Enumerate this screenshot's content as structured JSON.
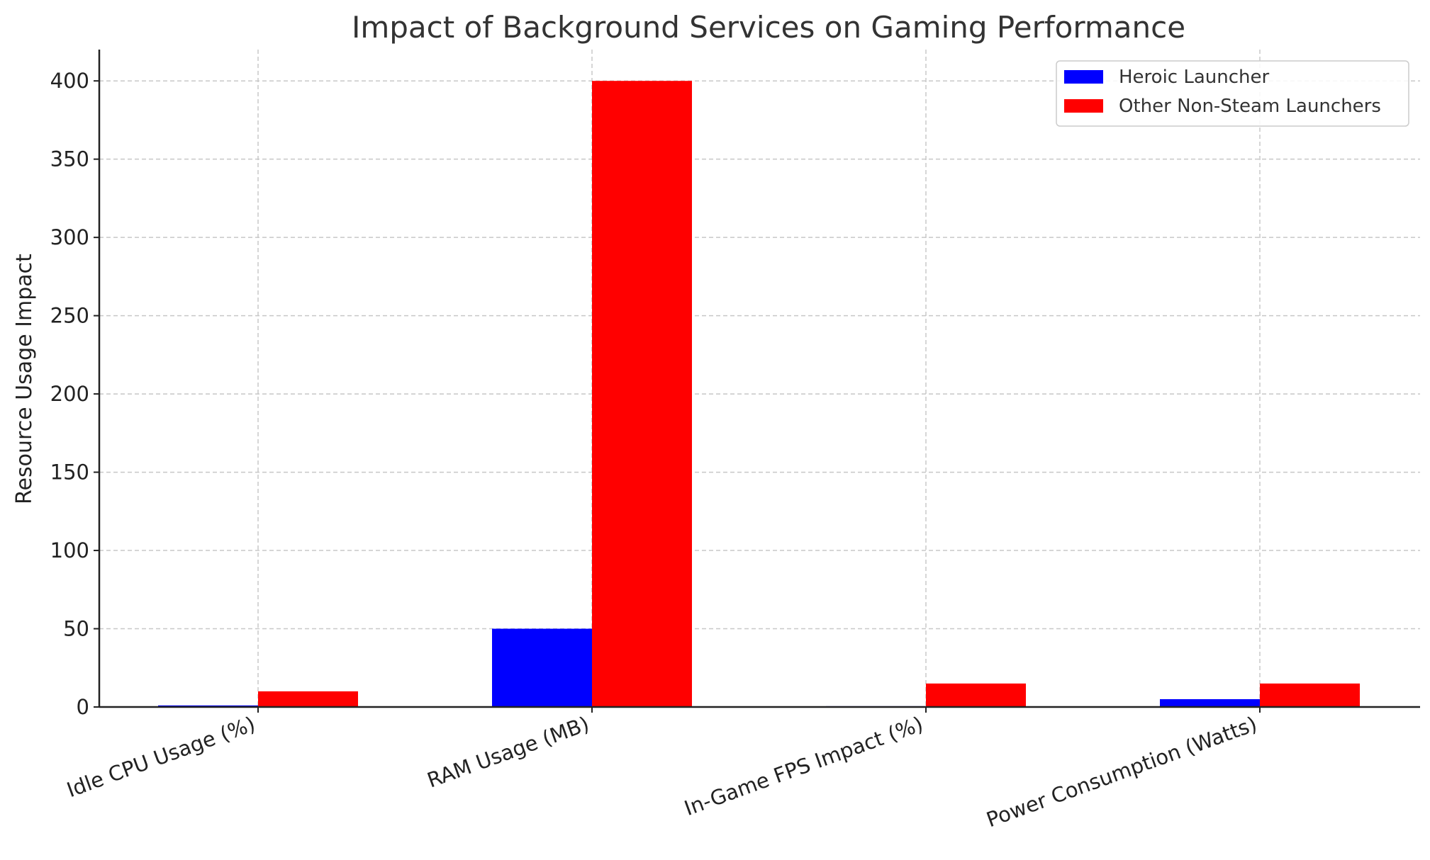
{
  "chart_data": {
    "type": "bar",
    "title": "Impact of Background Services on Gaming Performance",
    "xlabel": "",
    "ylabel": "Resource Usage Impact",
    "categories": [
      "Idle CPU Usage (%)",
      "RAM Usage (MB)",
      "In-Game FPS Impact (%)",
      "Power Consumption (Watts)"
    ],
    "series": [
      {
        "name": "Heroic Launcher",
        "values": [
          1,
          50,
          0.5,
          5
        ],
        "color": "#0000ff"
      },
      {
        "name": "Other Non-Steam Launchers",
        "values": [
          10,
          400,
          15,
          15
        ],
        "color": "#ff0000"
      }
    ],
    "ylim": [
      0,
      420
    ],
    "yticks": [
      0,
      50,
      100,
      150,
      200,
      250,
      300,
      350,
      400
    ],
    "grid": true,
    "legend_position": "top-right"
  }
}
